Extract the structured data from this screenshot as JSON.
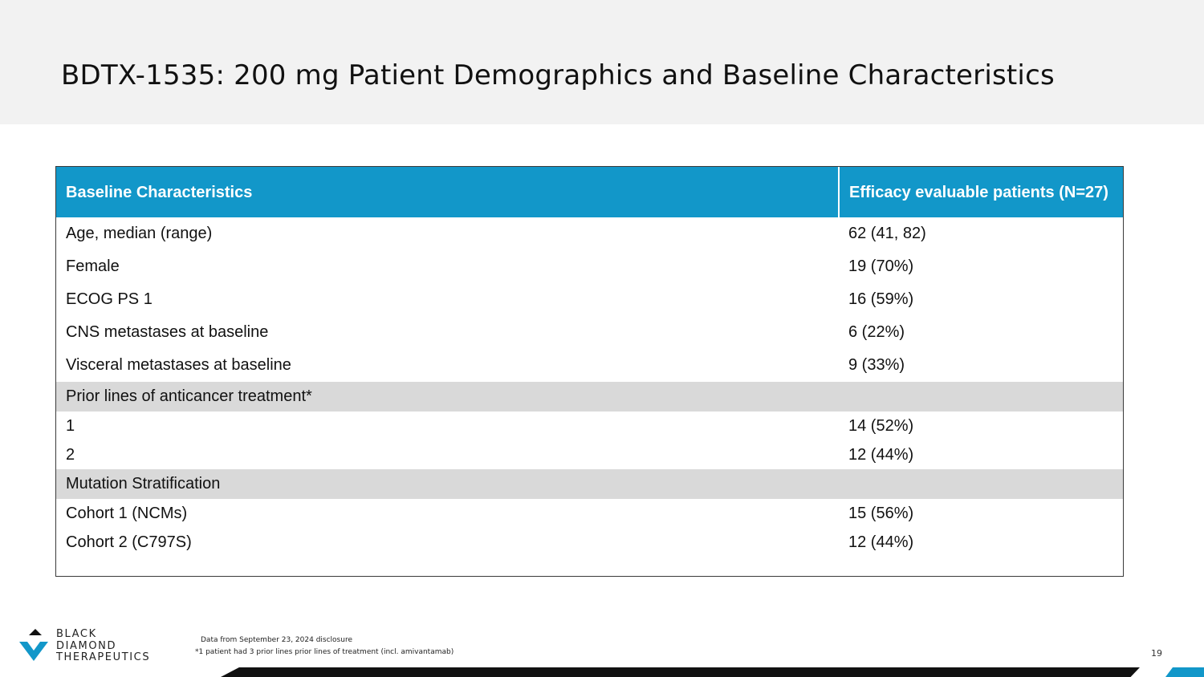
{
  "slide": {
    "title": "BDTX-1535: 200 mg Patient Demographics and Baseline Characteristics",
    "page_number": "19"
  },
  "table": {
    "headers": [
      "Baseline Characteristics",
      "Efficacy evaluable patients (N=27)"
    ],
    "rows": [
      {
        "label": "Age, median (range)",
        "value": "62 (41, 82)"
      },
      {
        "label": "Female",
        "value": "19 (70%)"
      },
      {
        "label": "ECOG PS 1",
        "value": "16 (59%)"
      },
      {
        "label": "CNS metastases at baseline",
        "value": "6 (22%)"
      },
      {
        "label": "Visceral metastases at baseline",
        "value": "9 (33%)"
      },
      {
        "section": "Prior lines of anticancer treatment*"
      },
      {
        "label": "1",
        "value": "14 (52%)"
      },
      {
        "label": "2",
        "value": "12 (44%)"
      },
      {
        "section": "Mutation Stratification"
      },
      {
        "label": "Cohort 1 (NCMs)",
        "value": "15 (56%)"
      },
      {
        "label": "Cohort 2 (C797S)",
        "value": "12 (44%)"
      }
    ]
  },
  "footer": {
    "note_source": "Data from September 23, 2024 disclosure",
    "note_footnote": "*1 patient had 3 prior lines prior lines of treatment (incl. amivantamab)",
    "logo_lines": [
      "BLACK",
      "DIAMOND",
      "THERAPEUTICS"
    ]
  },
  "colors": {
    "header_fill": "#1297c9",
    "section_fill": "#d9d9d9",
    "title_band": "#f2f2f2",
    "footer_bar": "#111111"
  }
}
